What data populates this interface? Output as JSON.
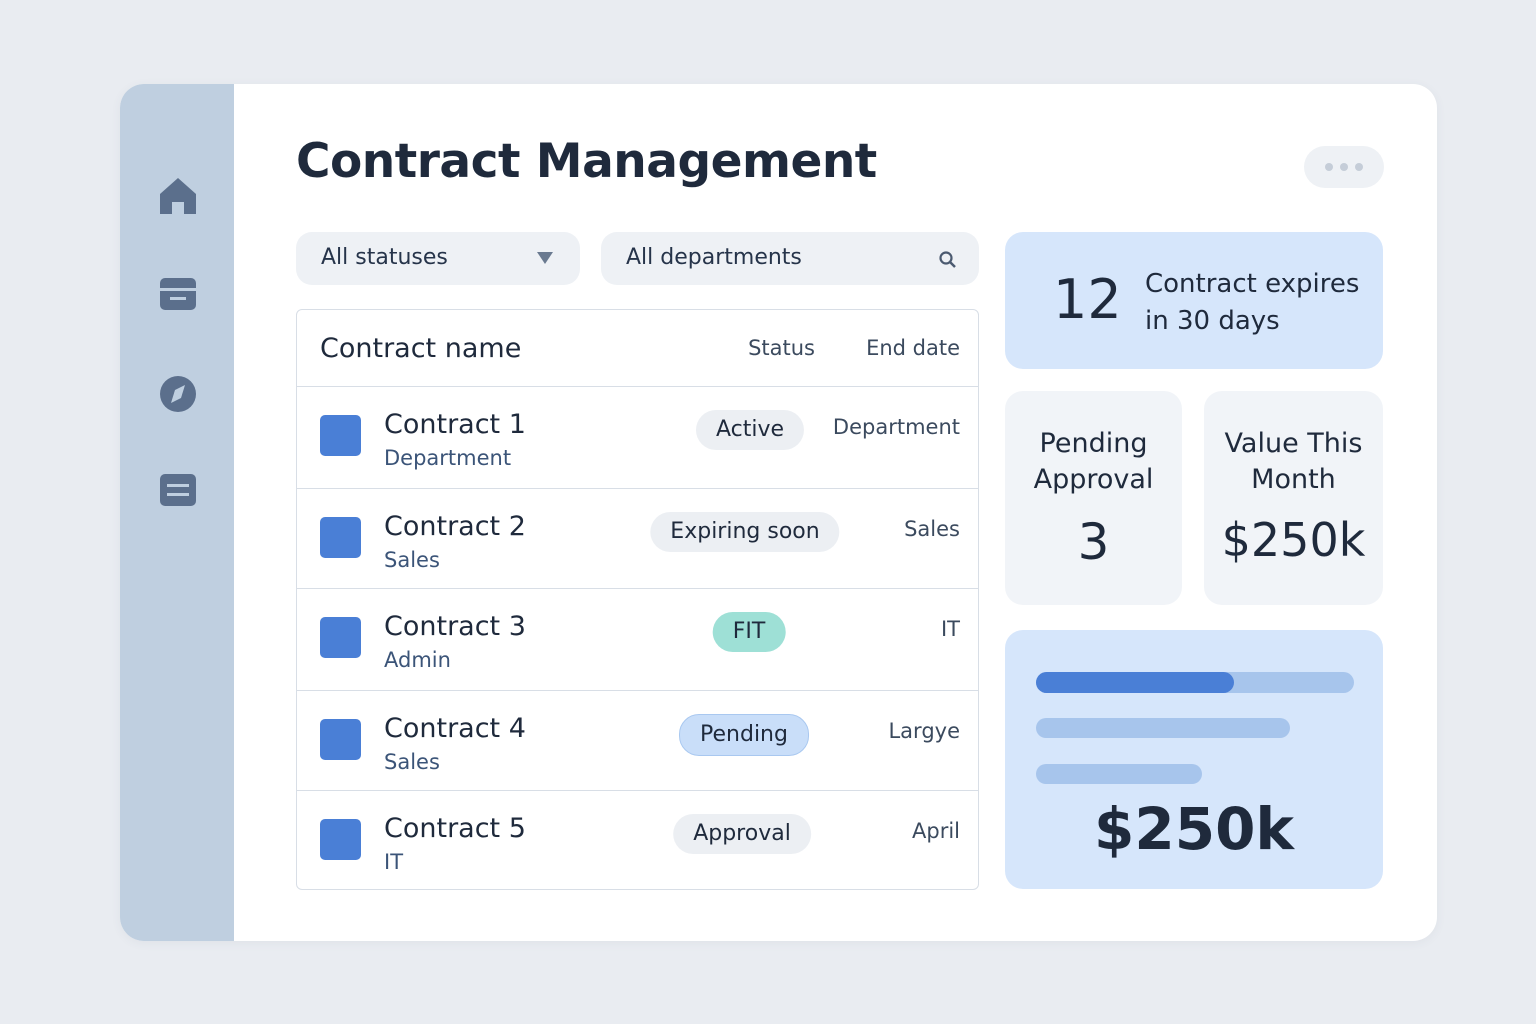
{
  "header": {
    "title": "Contract Management"
  },
  "filters": {
    "status": "All statuses",
    "department": "All departments"
  },
  "table": {
    "columns": [
      "Contract name",
      "Status",
      "End date"
    ],
    "rows": [
      {
        "name": "Contract 1",
        "sub": "Department",
        "status": "Active",
        "end": "Department"
      },
      {
        "name": "Contract 2",
        "sub": "Sales",
        "status": "Expiring soon",
        "end": "Sales"
      },
      {
        "name": "Contract 3",
        "sub": "Admin",
        "status": "FIT",
        "end": "IT"
      },
      {
        "name": "Contract 4",
        "sub": "Sales",
        "status": "Pending",
        "end": "Largye"
      },
      {
        "name": "Contract 5",
        "sub": "IT",
        "status": "Approval",
        "end": "April"
      }
    ]
  },
  "cards": {
    "expiring": {
      "count": 12,
      "label": "Contract expires in 30 days"
    },
    "pending": {
      "label": "Pending Approval",
      "value": 3
    },
    "value": {
      "label": "Value This Month",
      "value": "$250k"
    },
    "total": {
      "value": "$250k"
    }
  }
}
